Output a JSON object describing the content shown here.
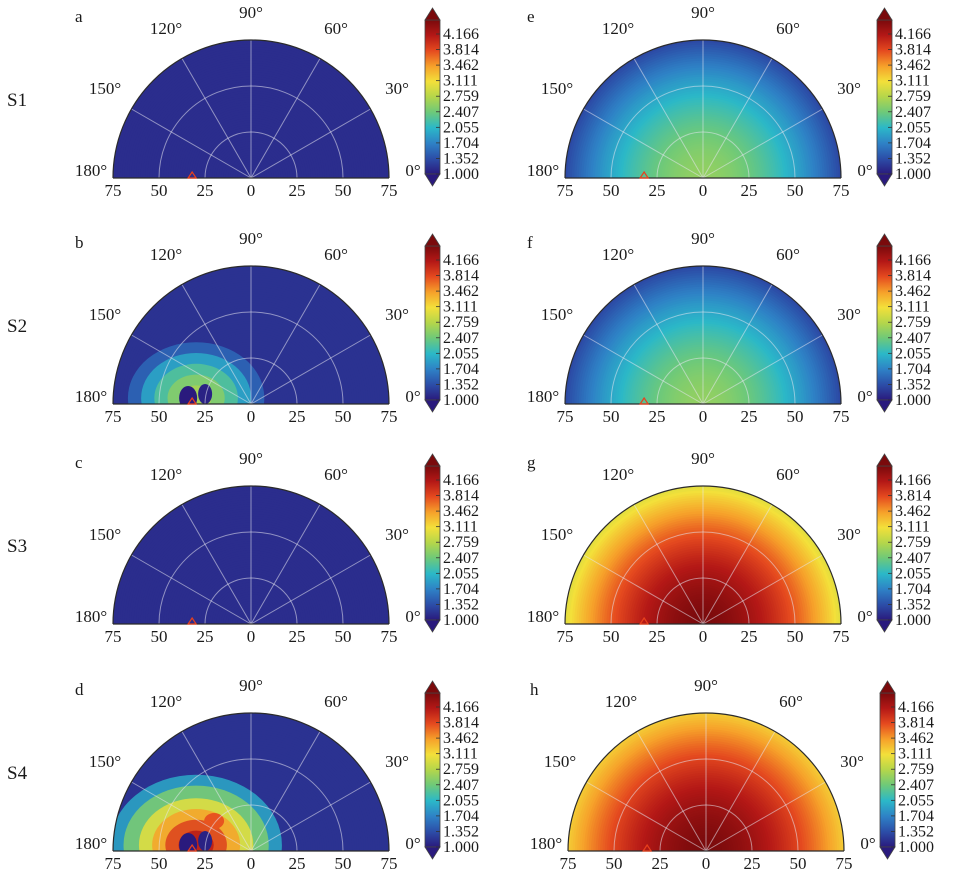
{
  "chart_data": {
    "type": "heatmap",
    "projection": "polar",
    "layout": "4 rows x 2 columns of half-disc polar contour plots, each with its own colorbar",
    "row_labels": [
      "S1",
      "S2",
      "S3",
      "S4"
    ],
    "panel_labels": [
      "a",
      "b",
      "c",
      "d",
      "e",
      "f",
      "g",
      "h"
    ],
    "angle_ticks": [
      "0°",
      "30°",
      "60°",
      "90°",
      "120°",
      "150°",
      "180°"
    ],
    "radial_ticks": [
      "75",
      "50",
      "25",
      "0",
      "25",
      "50",
      "75"
    ],
    "colorbar_ticks": [
      "4.166",
      "3.814",
      "3.462",
      "3.111",
      "2.759",
      "2.407",
      "2.055",
      "1.704",
      "1.352",
      "1.000"
    ],
    "colorbar_range": [
      1.0,
      4.3
    ],
    "colormap": [
      "#2a1a7d",
      "#2c4ea8",
      "#2e82c6",
      "#2bb8c8",
      "#6dc97a",
      "#b4d64b",
      "#f3e03a",
      "#f6a02a",
      "#e54a1f",
      "#b41816",
      "#7a0a0c"
    ],
    "source_marker": {
      "angle_deg": 180,
      "radius": 32
    },
    "panels": [
      {
        "label": "a",
        "row": "S1",
        "pattern": "uniform-low",
        "level": 1.12,
        "peak": 1.12
      },
      {
        "label": "b",
        "row": "S2",
        "pattern": "localized-near-source",
        "level": 1.15,
        "peak": 2.6
      },
      {
        "label": "c",
        "row": "S3",
        "pattern": "uniform-low",
        "level": 1.12,
        "peak": 1.12
      },
      {
        "label": "d",
        "row": "S4",
        "pattern": "localized-near-source",
        "level": 1.15,
        "peak": 3.9
      },
      {
        "label": "e",
        "row": "S1",
        "pattern": "radial",
        "level": 1.3,
        "peak": 2.5
      },
      {
        "label": "f",
        "row": "S2",
        "pattern": "radial",
        "level": 1.3,
        "peak": 2.5
      },
      {
        "label": "g",
        "row": "S3",
        "pattern": "radial",
        "level": 2.9,
        "peak": 4.3
      },
      {
        "label": "h",
        "row": "S4",
        "pattern": "radial",
        "level": 3.1,
        "peak": 4.3
      }
    ]
  }
}
